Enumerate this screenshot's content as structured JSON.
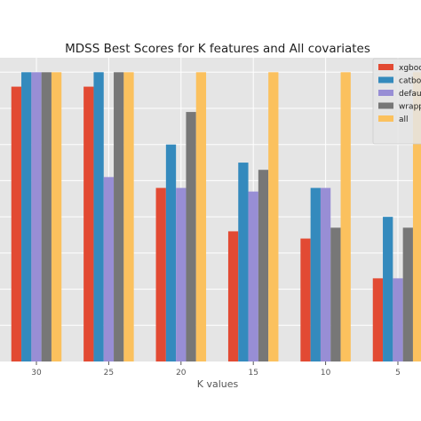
{
  "chart_data": {
    "type": "bar",
    "title": "MDSS Best Scores for K features and All covariates",
    "xlabel": "K values",
    "ylabel": "",
    "categories": [
      "30",
      "25",
      "20",
      "15",
      "10",
      "5"
    ],
    "ylim": [
      0,
      0.84
    ],
    "grid": true,
    "legend_position": "top-right",
    "series": [
      {
        "name": "xgboo",
        "color": "#E24A33",
        "values": [
          0.76,
          0.76,
          0.48,
          0.36,
          0.34,
          0.23
        ]
      },
      {
        "name": "catbo",
        "color": "#348ABD",
        "values": [
          0.8,
          0.8,
          0.6,
          0.55,
          0.48,
          0.4
        ]
      },
      {
        "name": "defau",
        "color": "#988ED5",
        "values": [
          0.8,
          0.51,
          0.48,
          0.47,
          0.48,
          0.23
        ]
      },
      {
        "name": "wrapp",
        "color": "#777777",
        "values": [
          0.8,
          0.8,
          0.69,
          0.53,
          0.37,
          0.37
        ]
      },
      {
        "name": "all",
        "color": "#FBC15E",
        "values": [
          0.8,
          0.8,
          0.8,
          0.8,
          0.8,
          0.8
        ]
      }
    ]
  }
}
